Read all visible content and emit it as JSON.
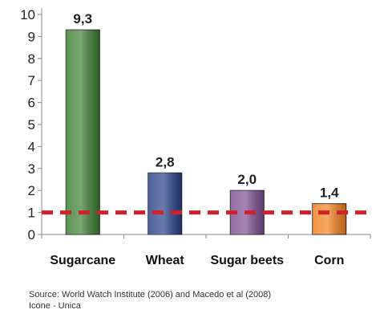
{
  "chart_data": {
    "type": "bar",
    "categories": [
      "Sugarcane",
      "Wheat",
      "Sugar beets",
      "Corn"
    ],
    "values": [
      9.3,
      2.8,
      2.0,
      1.4
    ],
    "data_labels": [
      "9,3",
      "2,8",
      "2,0",
      "1,4"
    ],
    "bar_colors": [
      "#3a7d2e",
      "#263f86",
      "#7b4c8f",
      "#f0801a"
    ],
    "ylim": [
      0,
      10
    ],
    "yticks": [
      0,
      1,
      2,
      3,
      4,
      5,
      6,
      7,
      8,
      9,
      10
    ],
    "ytick_labels": [
      "0",
      "1",
      "2",
      "3",
      "4",
      "5",
      "6",
      "7",
      "8",
      "9",
      "10"
    ],
    "reference_line": {
      "value": 1,
      "color": "#d0202a",
      "style": "dashed"
    },
    "grid": false,
    "title": "",
    "xlabel": "",
    "ylabel": ""
  },
  "source": {
    "line1": "Source: World Watch Institute (2006) and Macedo et al (2008)",
    "line2": "Icone - Unica"
  }
}
